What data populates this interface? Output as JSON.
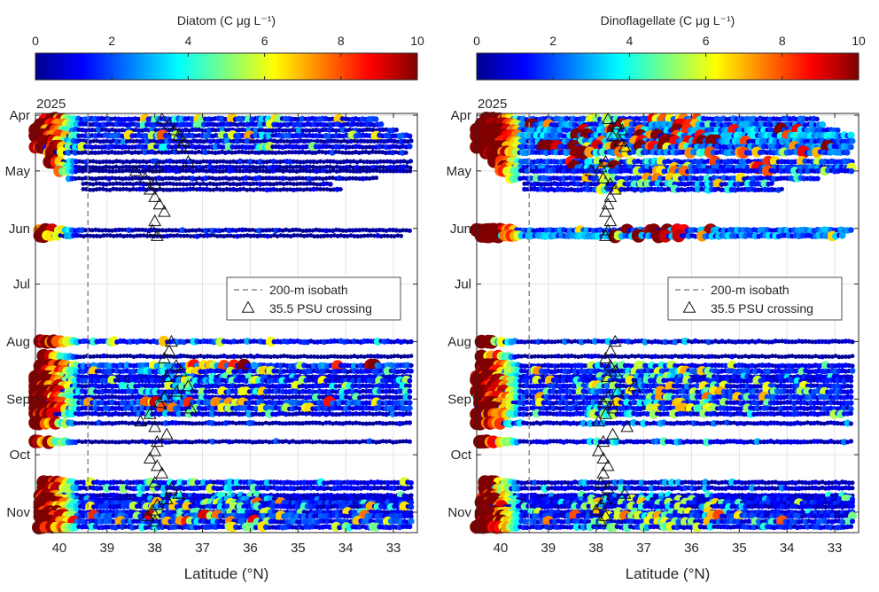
{
  "chart_data": [
    {
      "type": "scatter",
      "colorbar": {
        "title": "Diatom (C μg L⁻¹)",
        "ticks": [
          "0",
          "2",
          "4",
          "6",
          "8",
          "10"
        ],
        "range": [
          0,
          10
        ],
        "colormap": "jet"
      },
      "xlabel": "Latitude (°N)",
      "xticks": [
        "40",
        "39",
        "38",
        "37",
        "36",
        "35",
        "34",
        "33"
      ],
      "xlim": [
        40.5,
        32.5
      ],
      "x_reversed": true,
      "year_label": "2025",
      "yticks": [
        "Apr",
        "May",
        "Jun",
        "Jul",
        "Aug",
        "Sep",
        "Oct",
        "Nov"
      ],
      "ylim": [
        "2025-03-31",
        "2025-11-12"
      ],
      "y_reversed": true,
      "grid": true,
      "isobath_200m_lat": 39.4,
      "legend": {
        "location": "center-right",
        "entries": [
          "200-m isobath",
          "35.5 PSU crossing"
        ]
      },
      "tracks": [
        {
          "date": "2025-04-03",
          "lat_start": 40.3,
          "lat_end": 33.3,
          "value": 3.2
        },
        {
          "date": "2025-04-06",
          "lat_start": 40.4,
          "lat_end": 33.2,
          "value": 2.8
        },
        {
          "date": "2025-04-09",
          "lat_start": 40.5,
          "lat_end": 32.9,
          "value": 1.3
        },
        {
          "date": "2025-04-12",
          "lat_start": 40.5,
          "lat_end": 32.6,
          "value": 3.5
        },
        {
          "date": "2025-04-15",
          "lat_start": 40.4,
          "lat_end": 32.6,
          "value": 1.2
        },
        {
          "date": "2025-04-18",
          "lat_start": 40.5,
          "lat_end": 32.6,
          "value": 2.5
        },
        {
          "date": "2025-04-21",
          "lat_start": 40.3,
          "lat_end": 32.7,
          "value": 0.9
        },
        {
          "date": "2025-04-26",
          "lat_start": 40.2,
          "lat_end": 32.6,
          "value": 0.8
        },
        {
          "date": "2025-04-29",
          "lat_start": 40.0,
          "lat_end": 32.6,
          "value": 0.7
        },
        {
          "date": "2025-05-01",
          "lat_start": 40.0,
          "lat_end": 32.6,
          "value": 0.7
        },
        {
          "date": "2025-05-05",
          "lat_start": 39.8,
          "lat_end": 33.3,
          "value": 0.7
        },
        {
          "date": "2025-05-08",
          "lat_start": 39.5,
          "lat_end": 34.3,
          "value": 0.6
        },
        {
          "date": "2025-05-11",
          "lat_start": 39.5,
          "lat_end": 34.1,
          "value": 0.6
        },
        {
          "date": "2025-06-02",
          "lat_start": 40.5,
          "lat_end": 32.6,
          "value": 0.9
        },
        {
          "date": "2025-06-05",
          "lat_start": 40.4,
          "lat_end": 32.8,
          "value": 0.6
        },
        {
          "date": "2025-08-01",
          "lat_start": 40.4,
          "lat_end": 32.6,
          "value": 3.0
        },
        {
          "date": "2025-08-09",
          "lat_start": 40.4,
          "lat_end": 32.6,
          "value": 0.5
        },
        {
          "date": "2025-08-14",
          "lat_start": 40.4,
          "lat_end": 32.6,
          "value": 4.5
        },
        {
          "date": "2025-08-17",
          "lat_start": 40.4,
          "lat_end": 32.6,
          "value": 3.0
        },
        {
          "date": "2025-08-20",
          "lat_start": 40.5,
          "lat_end": 32.6,
          "value": 2.0
        },
        {
          "date": "2025-08-22",
          "lat_start": 40.5,
          "lat_end": 32.6,
          "value": 3.0
        },
        {
          "date": "2025-08-25",
          "lat_start": 40.5,
          "lat_end": 32.6,
          "value": 2.5
        },
        {
          "date": "2025-08-28",
          "lat_start": 40.5,
          "lat_end": 32.6,
          "value": 3.0
        },
        {
          "date": "2025-08-31",
          "lat_start": 40.5,
          "lat_end": 32.6,
          "value": 2.0
        },
        {
          "date": "2025-09-03",
          "lat_start": 40.5,
          "lat_end": 32.6,
          "value": 4.0
        },
        {
          "date": "2025-09-06",
          "lat_start": 40.5,
          "lat_end": 32.6,
          "value": 3.5
        },
        {
          "date": "2025-09-09",
          "lat_start": 40.5,
          "lat_end": 32.6,
          "value": 2.0
        },
        {
          "date": "2025-09-14",
          "lat_start": 40.5,
          "lat_end": 32.6,
          "value": 1.0
        },
        {
          "date": "2025-09-24",
          "lat_start": 40.5,
          "lat_end": 32.6,
          "value": 1.0
        },
        {
          "date": "2025-10-16",
          "lat_start": 40.4,
          "lat_end": 32.6,
          "value": 2.5
        },
        {
          "date": "2025-10-19",
          "lat_start": 40.4,
          "lat_end": 32.6,
          "value": 2.5
        },
        {
          "date": "2025-10-23",
          "lat_start": 40.4,
          "lat_end": 32.6,
          "value": 2.0
        },
        {
          "date": "2025-10-25",
          "lat_start": 40.4,
          "lat_end": 32.6,
          "value": 2.0
        },
        {
          "date": "2025-10-27",
          "lat_start": 40.4,
          "lat_end": 32.6,
          "value": 3.5
        },
        {
          "date": "2025-10-29",
          "lat_start": 40.4,
          "lat_end": 32.6,
          "value": 3.0
        },
        {
          "date": "2025-11-01",
          "lat_start": 40.4,
          "lat_end": 32.6,
          "value": 3.0
        },
        {
          "date": "2025-11-03",
          "lat_start": 40.4,
          "lat_end": 32.6,
          "value": 4.0
        },
        {
          "date": "2025-11-06",
          "lat_start": 40.4,
          "lat_end": 32.6,
          "value": 4.0
        },
        {
          "date": "2025-11-09",
          "lat_start": 40.5,
          "lat_end": 32.6,
          "value": 3.0
        }
      ],
      "psu_crossings": [
        {
          "date": "2025-04-03",
          "lat": 37.85
        },
        {
          "date": "2025-04-06",
          "lat": 37.7
        },
        {
          "date": "2025-04-09",
          "lat": 37.6
        },
        {
          "date": "2025-04-12",
          "lat": 37.5
        },
        {
          "date": "2025-04-15",
          "lat": 37.4
        },
        {
          "date": "2025-04-18",
          "lat": 37.45
        },
        {
          "date": "2025-04-26",
          "lat": 37.3
        },
        {
          "date": "2025-04-29",
          "lat": 37.95
        },
        {
          "date": "2025-05-01",
          "lat": 38.4
        },
        {
          "date": "2025-05-05",
          "lat": 38.2
        },
        {
          "date": "2025-05-08",
          "lat": 38.0
        },
        {
          "date": "2025-05-11",
          "lat": 38.1
        },
        {
          "date": "2025-05-15",
          "lat": 38.0
        },
        {
          "date": "2025-05-19",
          "lat": 37.9
        },
        {
          "date": "2025-05-23",
          "lat": 37.8
        },
        {
          "date": "2025-05-28",
          "lat": 38.0
        },
        {
          "date": "2025-06-02",
          "lat": 38.05
        },
        {
          "date": "2025-06-05",
          "lat": 37.95
        },
        {
          "date": "2025-08-01",
          "lat": 37.65
        },
        {
          "date": "2025-08-06",
          "lat": 37.7
        },
        {
          "date": "2025-08-10",
          "lat": 37.8
        },
        {
          "date": "2025-08-14",
          "lat": 37.55
        },
        {
          "date": "2025-08-17",
          "lat": 37.45
        },
        {
          "date": "2025-08-20",
          "lat": 37.75
        },
        {
          "date": "2025-08-25",
          "lat": 37.3
        },
        {
          "date": "2025-08-28",
          "lat": 37.55
        },
        {
          "date": "2025-08-31",
          "lat": 37.8
        },
        {
          "date": "2025-09-03",
          "lat": 37.9
        },
        {
          "date": "2025-09-06",
          "lat": 37.25
        },
        {
          "date": "2025-09-09",
          "lat": 38.1
        },
        {
          "date": "2025-09-13",
          "lat": 38.3
        },
        {
          "date": "2025-09-16",
          "lat": 38.0
        },
        {
          "date": "2025-09-20",
          "lat": 37.75
        },
        {
          "date": "2025-09-24",
          "lat": 37.95
        },
        {
          "date": "2025-09-29",
          "lat": 38.0
        },
        {
          "date": "2025-10-03",
          "lat": 38.1
        },
        {
          "date": "2025-10-07",
          "lat": 37.95
        },
        {
          "date": "2025-10-11",
          "lat": 37.85
        },
        {
          "date": "2025-10-16",
          "lat": 38.0
        },
        {
          "date": "2025-10-19",
          "lat": 37.65
        },
        {
          "date": "2025-10-22",
          "lat": 37.5
        },
        {
          "date": "2025-10-25",
          "lat": 37.75
        },
        {
          "date": "2025-10-28",
          "lat": 37.95
        },
        {
          "date": "2025-10-31",
          "lat": 38.05
        },
        {
          "date": "2025-11-03",
          "lat": 38.15
        },
        {
          "date": "2025-11-06",
          "lat": 38.0
        }
      ]
    },
    {
      "type": "scatter",
      "colorbar": {
        "title": "Dinoflagellate (C μg L⁻¹)",
        "ticks": [
          "0",
          "2",
          "4",
          "6",
          "8",
          "10"
        ],
        "range": [
          0,
          10
        ],
        "colormap": "jet"
      },
      "xlabel": "Latitude (°N)",
      "xticks": [
        "40",
        "39",
        "38",
        "37",
        "36",
        "35",
        "34",
        "33"
      ],
      "xlim": [
        40.5,
        32.5
      ],
      "x_reversed": true,
      "year_label": "2025",
      "yticks": [
        "Apr",
        "May",
        "Jun",
        "Jul",
        "Aug",
        "Sep",
        "Oct",
        "Nov"
      ],
      "ylim": [
        "2025-03-31",
        "2025-11-12"
      ],
      "y_reversed": true,
      "grid": true,
      "isobath_200m_lat": 39.4,
      "legend": {
        "location": "center-right",
        "entries": [
          "200-m isobath",
          "35.5 PSU crossing"
        ]
      },
      "tracks": [
        {
          "date": "2025-04-03",
          "lat_start": 40.3,
          "lat_end": 33.3,
          "value": 4.0
        },
        {
          "date": "2025-04-06",
          "lat_start": 40.4,
          "lat_end": 33.2,
          "value": 5.0
        },
        {
          "date": "2025-04-09",
          "lat_start": 40.5,
          "lat_end": 32.9,
          "value": 6.0
        },
        {
          "date": "2025-04-12",
          "lat_start": 40.5,
          "lat_end": 32.6,
          "value": 6.5
        },
        {
          "date": "2025-04-15",
          "lat_start": 40.4,
          "lat_end": 32.6,
          "value": 5.5
        },
        {
          "date": "2025-04-18",
          "lat_start": 40.5,
          "lat_end": 32.6,
          "value": 5.0
        },
        {
          "date": "2025-04-21",
          "lat_start": 40.3,
          "lat_end": 32.7,
          "value": 4.5
        },
        {
          "date": "2025-04-26",
          "lat_start": 40.2,
          "lat_end": 32.6,
          "value": 4.0
        },
        {
          "date": "2025-04-29",
          "lat_start": 40.0,
          "lat_end": 32.6,
          "value": 4.5
        },
        {
          "date": "2025-05-01",
          "lat_start": 40.0,
          "lat_end": 32.6,
          "value": 3.5
        },
        {
          "date": "2025-05-05",
          "lat_start": 39.8,
          "lat_end": 33.3,
          "value": 3.5
        },
        {
          "date": "2025-05-08",
          "lat_start": 39.5,
          "lat_end": 34.3,
          "value": 3.0
        },
        {
          "date": "2025-05-11",
          "lat_start": 39.5,
          "lat_end": 34.1,
          "value": 3.0
        },
        {
          "date": "2025-06-02",
          "lat_start": 40.5,
          "lat_end": 32.6,
          "value": 5.0
        },
        {
          "date": "2025-06-05",
          "lat_start": 40.4,
          "lat_end": 32.8,
          "value": 5.5
        },
        {
          "date": "2025-08-01",
          "lat_start": 40.4,
          "lat_end": 32.6,
          "value": 1.5
        },
        {
          "date": "2025-08-09",
          "lat_start": 40.4,
          "lat_end": 32.6,
          "value": 0.5
        },
        {
          "date": "2025-08-14",
          "lat_start": 40.4,
          "lat_end": 32.6,
          "value": 2.5
        },
        {
          "date": "2025-08-17",
          "lat_start": 40.4,
          "lat_end": 32.6,
          "value": 3.5
        },
        {
          "date": "2025-08-20",
          "lat_start": 40.5,
          "lat_end": 32.6,
          "value": 2.5
        },
        {
          "date": "2025-08-22",
          "lat_start": 40.5,
          "lat_end": 32.6,
          "value": 3.0
        },
        {
          "date": "2025-08-25",
          "lat_start": 40.5,
          "lat_end": 32.6,
          "value": 3.0
        },
        {
          "date": "2025-08-28",
          "lat_start": 40.5,
          "lat_end": 32.6,
          "value": 3.5
        },
        {
          "date": "2025-08-31",
          "lat_start": 40.5,
          "lat_end": 32.6,
          "value": 3.5
        },
        {
          "date": "2025-09-03",
          "lat_start": 40.5,
          "lat_end": 32.6,
          "value": 3.0
        },
        {
          "date": "2025-09-06",
          "lat_start": 40.5,
          "lat_end": 32.6,
          "value": 3.0
        },
        {
          "date": "2025-09-09",
          "lat_start": 40.5,
          "lat_end": 32.6,
          "value": 2.5
        },
        {
          "date": "2025-09-14",
          "lat_start": 40.5,
          "lat_end": 32.6,
          "value": 1.5
        },
        {
          "date": "2025-09-24",
          "lat_start": 40.5,
          "lat_end": 32.6,
          "value": 2.0
        },
        {
          "date": "2025-10-16",
          "lat_start": 40.4,
          "lat_end": 32.6,
          "value": 1.5
        },
        {
          "date": "2025-10-19",
          "lat_start": 40.4,
          "lat_end": 32.6,
          "value": 2.0
        },
        {
          "date": "2025-10-23",
          "lat_start": 40.4,
          "lat_end": 32.6,
          "value": 2.0
        },
        {
          "date": "2025-10-25",
          "lat_start": 40.4,
          "lat_end": 32.6,
          "value": 2.5
        },
        {
          "date": "2025-10-27",
          "lat_start": 40.4,
          "lat_end": 32.6,
          "value": 3.0
        },
        {
          "date": "2025-10-29",
          "lat_start": 40.4,
          "lat_end": 32.6,
          "value": 2.5
        },
        {
          "date": "2025-11-01",
          "lat_start": 40.4,
          "lat_end": 32.6,
          "value": 3.0
        },
        {
          "date": "2025-11-03",
          "lat_start": 40.4,
          "lat_end": 32.6,
          "value": 3.5
        },
        {
          "date": "2025-11-06",
          "lat_start": 40.4,
          "lat_end": 32.6,
          "value": 3.5
        },
        {
          "date": "2025-11-09",
          "lat_start": 40.5,
          "lat_end": 32.6,
          "value": 3.0
        }
      ],
      "psu_crossings": [
        {
          "date": "2025-04-03",
          "lat": 37.75
        },
        {
          "date": "2025-04-06",
          "lat": 37.55
        },
        {
          "date": "2025-04-09",
          "lat": 37.45
        },
        {
          "date": "2025-04-12",
          "lat": 37.65
        },
        {
          "date": "2025-04-15",
          "lat": 37.5
        },
        {
          "date": "2025-04-18",
          "lat": 37.4
        },
        {
          "date": "2025-04-26",
          "lat": 37.8
        },
        {
          "date": "2025-04-29",
          "lat": 37.9
        },
        {
          "date": "2025-05-01",
          "lat": 38.1
        },
        {
          "date": "2025-05-05",
          "lat": 37.85
        },
        {
          "date": "2025-05-08",
          "lat": 37.7
        },
        {
          "date": "2025-05-11",
          "lat": 37.6
        },
        {
          "date": "2025-05-15",
          "lat": 37.7
        },
        {
          "date": "2025-05-19",
          "lat": 37.75
        },
        {
          "date": "2025-05-23",
          "lat": 37.8
        },
        {
          "date": "2025-05-28",
          "lat": 37.7
        },
        {
          "date": "2025-06-02",
          "lat": 37.75
        },
        {
          "date": "2025-06-05",
          "lat": 37.8
        },
        {
          "date": "2025-08-01",
          "lat": 37.6
        },
        {
          "date": "2025-08-06",
          "lat": 37.7
        },
        {
          "date": "2025-08-10",
          "lat": 37.8
        },
        {
          "date": "2025-08-14",
          "lat": 37.7
        },
        {
          "date": "2025-08-17",
          "lat": 37.6
        },
        {
          "date": "2025-08-20",
          "lat": 37.75
        },
        {
          "date": "2025-08-25",
          "lat": 37.2
        },
        {
          "date": "2025-08-28",
          "lat": 37.55
        },
        {
          "date": "2025-08-31",
          "lat": 37.75
        },
        {
          "date": "2025-09-03",
          "lat": 37.85
        },
        {
          "date": "2025-09-06",
          "lat": 37.65
        },
        {
          "date": "2025-09-09",
          "lat": 37.8
        },
        {
          "date": "2025-09-13",
          "lat": 37.95
        },
        {
          "date": "2025-09-16",
          "lat": 37.35
        },
        {
          "date": "2025-09-20",
          "lat": 37.65
        },
        {
          "date": "2025-09-24",
          "lat": 37.85
        },
        {
          "date": "2025-09-29",
          "lat": 37.95
        },
        {
          "date": "2025-10-03",
          "lat": 37.85
        },
        {
          "date": "2025-10-07",
          "lat": 37.75
        },
        {
          "date": "2025-10-11",
          "lat": 37.85
        },
        {
          "date": "2025-10-16",
          "lat": 37.9
        },
        {
          "date": "2025-10-19",
          "lat": 37.75
        },
        {
          "date": "2025-10-22",
          "lat": 37.4
        },
        {
          "date": "2025-10-25",
          "lat": 37.8
        },
        {
          "date": "2025-10-28",
          "lat": 37.9
        },
        {
          "date": "2025-10-31",
          "lat": 38.0
        },
        {
          "date": "2025-11-03",
          "lat": 37.8
        },
        {
          "date": "2025-11-06",
          "lat": 37.9
        }
      ]
    }
  ]
}
